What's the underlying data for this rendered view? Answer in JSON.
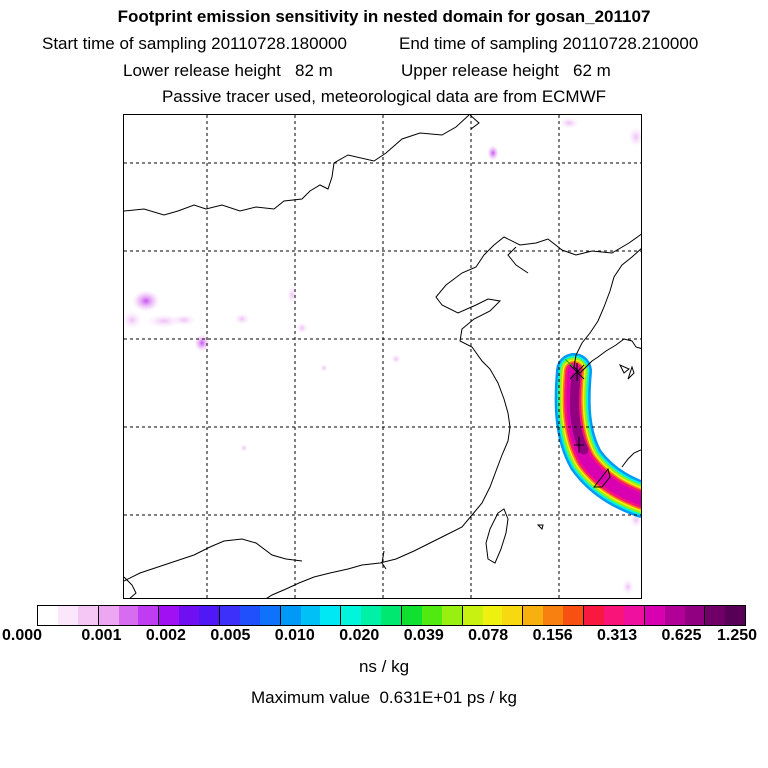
{
  "header": {
    "title": "Footprint emission sensitivity in nested domain for gosan_201107",
    "start_label": "Start time of sampling 20110728.180000",
    "end_label": "End time of sampling 20110728.210000",
    "lower_label": "Lower release height   82 m",
    "upper_label": "Upper release height   62 m",
    "tracer_label": "Passive tracer used, meteorological data are from ECMWF"
  },
  "colorbar": {
    "colors": [
      "#ffffff",
      "#fbe6fb",
      "#f4c7f4",
      "#eca6f2",
      "#d86cf0",
      "#c03cf2",
      "#a010f2",
      "#7010f2",
      "#5018f6",
      "#3c30fa",
      "#2050fb",
      "#0e72fb",
      "#0099f7",
      "#00c0f6",
      "#00e8f4",
      "#00f6dc",
      "#00f0a8",
      "#00e870",
      "#10e030",
      "#50ea10",
      "#98f010",
      "#c8f010",
      "#f0f010",
      "#f8d810",
      "#f8b010",
      "#f88010",
      "#f85010",
      "#f81840",
      "#f81478",
      "#f010a0",
      "#d800b0",
      "#b00098",
      "#900080",
      "#700068",
      "#580058"
    ],
    "tick_labels": [
      "0.000",
      "0.001",
      "0.002",
      "0.005",
      "0.010",
      "0.020",
      "0.039",
      "0.078",
      "0.156",
      "0.313",
      "0.625",
      "1.250"
    ]
  },
  "units": "ns / kg",
  "max_value": "Maximum value  0.631E+01 ps / kg"
}
